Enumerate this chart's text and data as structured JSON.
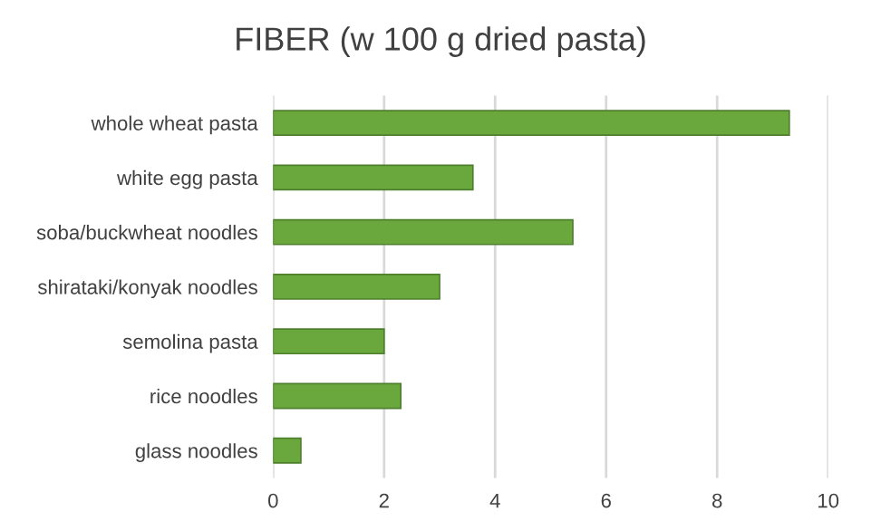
{
  "chart_data": {
    "type": "bar",
    "orientation": "horizontal",
    "title": "FIBER (w 100 g dried pasta)",
    "categories": [
      "whole wheat pasta",
      "white egg pasta",
      "soba/buckwheat noodles",
      "shirataki/konyak noodles",
      "semolina pasta",
      "rice noodles",
      "glass noodles"
    ],
    "values": [
      9.3,
      3.6,
      5.4,
      3.0,
      2.0,
      2.3,
      0.5
    ],
    "color": "#6aa83e",
    "xlim": [
      0,
      10
    ],
    "xticks": [
      0,
      2,
      4,
      6,
      8,
      10
    ],
    "grid": "x"
  }
}
